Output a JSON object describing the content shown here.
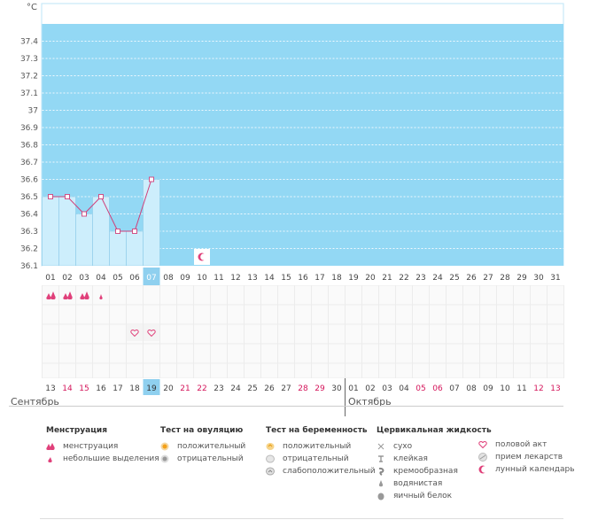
{
  "chart_data": {
    "type": "line",
    "unit_label": "°C",
    "ylim": [
      36.1,
      37.5
    ],
    "y_ticks": [
      "37.4",
      "37.3",
      "37.2",
      "37.1",
      "37",
      "36.9",
      "36.8",
      "36.7",
      "36.6",
      "36.5",
      "36.4",
      "36.3",
      "36.2",
      "36.1"
    ],
    "cycle_days": [
      "01",
      "02",
      "03",
      "04",
      "05",
      "06",
      "07",
      "08",
      "09",
      "10",
      "11",
      "12",
      "13",
      "14",
      "15",
      "16",
      "17",
      "18",
      "19",
      "20",
      "21",
      "22",
      "23",
      "24",
      "25",
      "26",
      "27",
      "28",
      "29",
      "30",
      "31"
    ],
    "temperatures": [
      36.5,
      36.5,
      36.4,
      36.5,
      36.3,
      36.3,
      36.6
    ],
    "highlight_day": "07",
    "lunar_marker_day": "10",
    "menstruation": [
      "heavy",
      "heavy",
      "heavy",
      "light"
    ],
    "intercourse_days": [
      "06",
      "07"
    ],
    "calendar_dates": [
      {
        "d": "13",
        "we": false
      },
      {
        "d": "14",
        "we": true
      },
      {
        "d": "15",
        "we": true
      },
      {
        "d": "16",
        "we": false
      },
      {
        "d": "17",
        "we": false
      },
      {
        "d": "18",
        "we": false
      },
      {
        "d": "19",
        "we": false
      },
      {
        "d": "20",
        "we": false
      },
      {
        "d": "21",
        "we": true
      },
      {
        "d": "22",
        "we": true
      },
      {
        "d": "23",
        "we": false
      },
      {
        "d": "24",
        "we": false
      },
      {
        "d": "25",
        "we": false
      },
      {
        "d": "26",
        "we": false
      },
      {
        "d": "27",
        "we": false
      },
      {
        "d": "28",
        "we": true
      },
      {
        "d": "29",
        "we": true
      },
      {
        "d": "30",
        "we": false
      },
      {
        "d": "01",
        "we": false
      },
      {
        "d": "02",
        "we": false
      },
      {
        "d": "03",
        "we": false
      },
      {
        "d": "04",
        "we": false
      },
      {
        "d": "05",
        "we": true
      },
      {
        "d": "06",
        "we": true
      },
      {
        "d": "07",
        "we": false
      },
      {
        "d": "08",
        "we": false
      },
      {
        "d": "09",
        "we": false
      },
      {
        "d": "10",
        "we": false
      },
      {
        "d": "11",
        "we": false
      },
      {
        "d": "12",
        "we": true
      },
      {
        "d": "13",
        "we": true
      }
    ],
    "today_date": "19",
    "months": [
      "Сентябрь",
      "Октябрь"
    ]
  },
  "colors": {
    "chart_bg": "#93d8f4",
    "bar_fill": "#cdeefc",
    "bar_stroke": "#8ccbe8",
    "line": "#d0407a",
    "highlight": "#8fd0ef",
    "weekend": "#d4145a",
    "grid": "#ececec",
    "pink": "#e0407a"
  },
  "legend": {
    "menstruation": {
      "title": "Менструация",
      "items": [
        {
          "label": "менструация",
          "icon": "drop-double-icon"
        },
        {
          "label": "небольшие выделения",
          "icon": "drop-small-icon"
        }
      ]
    },
    "ovulation": {
      "title": "Тест на овуляцию",
      "items": [
        {
          "label": "положительный",
          "icon": "ovulation-positive-icon"
        },
        {
          "label": "отрицательный",
          "icon": "ovulation-negative-icon"
        }
      ]
    },
    "pregnancy": {
      "title": "Тест на беременность",
      "items": [
        {
          "label": "положительный",
          "icon": "pregnancy-positive-icon"
        },
        {
          "label": "отрицательный",
          "icon": "pregnancy-negative-icon"
        },
        {
          "label": "слабоположительный",
          "icon": "pregnancy-weak-icon"
        }
      ]
    },
    "cervical": {
      "title": "Цервикальная жидкость",
      "items": [
        {
          "label": "сухо",
          "icon": "cross-icon"
        },
        {
          "label": "клейкая",
          "icon": "sticky-icon"
        },
        {
          "label": "кремообразная",
          "icon": "creamy-icon"
        },
        {
          "label": "водянистая",
          "icon": "watery-icon"
        },
        {
          "label": "яичный белок",
          "icon": "eggwhite-icon"
        }
      ]
    },
    "other": {
      "items": [
        {
          "label": "половой акт",
          "icon": "heart-icon"
        },
        {
          "label": "прием лекарств",
          "icon": "pill-icon"
        },
        {
          "label": "лунный календарь",
          "icon": "moon-icon"
        }
      ]
    }
  }
}
